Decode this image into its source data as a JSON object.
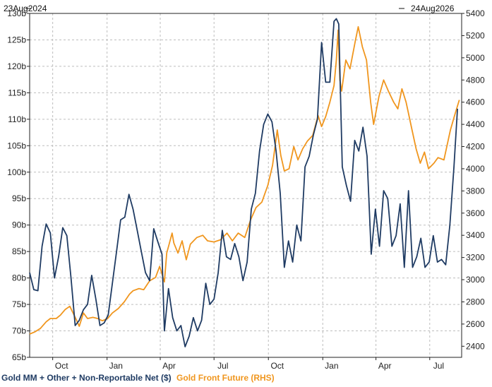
{
  "chart_data": {
    "type": "line",
    "title": "",
    "date_range": {
      "start_label": "23Aug2024",
      "end_label": "24Aug2026"
    },
    "x_axis": {
      "start": "2024-08-23",
      "end": "2026-08-24",
      "ticks": [
        {
          "label": "Oct",
          "date": "2024-10-01"
        },
        {
          "label": "Jan",
          "date": "2025-01-01"
        },
        {
          "label": "Apr",
          "date": "2025-04-01"
        },
        {
          "label": "Jul",
          "date": "2025-07-01"
        },
        {
          "label": "Oct",
          "date": "2025-10-01"
        },
        {
          "label": "Jan",
          "date": "2026-01-01"
        },
        {
          "label": "Apr",
          "date": "2026-04-01"
        },
        {
          "label": "Jul",
          "date": "2026-07-01"
        }
      ]
    },
    "y_left": {
      "range": [
        65,
        130
      ],
      "ticks": [
        65,
        70,
        75,
        80,
        85,
        90,
        95,
        100,
        105,
        110,
        115,
        120,
        125,
        130
      ],
      "tick_labels": [
        "65b",
        "70b",
        "75b",
        "80b",
        "85b",
        "90b",
        "95b",
        "100b",
        "105b",
        "110b",
        "115b",
        "120b",
        "125b",
        "130b"
      ]
    },
    "y_right": {
      "range": [
        2300,
        5400
      ],
      "ticks": [
        2400,
        2600,
        2800,
        3000,
        3200,
        3400,
        3600,
        3800,
        4000,
        4200,
        4400,
        4600,
        4800,
        5000,
        5200,
        5400
      ],
      "tick_labels": [
        "2400",
        "2600",
        "2800",
        "3000",
        "3200",
        "3400",
        "3600",
        "3800",
        "4000",
        "4200",
        "4400",
        "4600",
        "4800",
        "5000",
        "5200",
        "5400"
      ]
    },
    "grid": true,
    "legend_position": "bottom-left",
    "series": [
      {
        "name": "Gold MM + Other + Non-Reportable Net ($)",
        "axis": "left",
        "color": "#1f3b63",
        "points": [
          [
            "2024-08-23",
            81
          ],
          [
            "2024-08-30",
            77.8
          ],
          [
            "2024-09-06",
            77.6
          ],
          [
            "2024-09-13",
            86
          ],
          [
            "2024-09-20",
            90.2
          ],
          [
            "2024-09-27",
            88.5
          ],
          [
            "2024-10-04",
            80
          ],
          [
            "2024-10-11",
            84
          ],
          [
            "2024-10-18",
            89.5
          ],
          [
            "2024-10-25",
            88
          ],
          [
            "2024-11-01",
            80
          ],
          [
            "2024-11-08",
            71
          ],
          [
            "2024-11-15",
            72
          ],
          [
            "2024-11-22",
            74
          ],
          [
            "2024-11-29",
            75
          ],
          [
            "2024-12-06",
            80.5
          ],
          [
            "2024-12-13",
            76
          ],
          [
            "2024-12-20",
            71
          ],
          [
            "2024-12-27",
            71.5
          ],
          [
            "2025-01-03",
            73
          ],
          [
            "2025-01-10",
            79
          ],
          [
            "2025-01-17",
            85
          ],
          [
            "2025-01-24",
            91
          ],
          [
            "2025-01-31",
            91.5
          ],
          [
            "2025-02-07",
            95.8
          ],
          [
            "2025-02-14",
            93
          ],
          [
            "2025-02-21",
            89
          ],
          [
            "2025-02-28",
            85
          ],
          [
            "2025-03-07",
            81
          ],
          [
            "2025-03-14",
            79.5
          ],
          [
            "2025-03-21",
            89.3
          ],
          [
            "2025-03-28",
            86.8
          ],
          [
            "2025-04-04",
            84.5
          ],
          [
            "2025-04-08",
            70
          ],
          [
            "2025-04-15",
            78
          ],
          [
            "2025-04-22",
            72.5
          ],
          [
            "2025-04-29",
            70
          ],
          [
            "2025-05-06",
            71
          ],
          [
            "2025-05-13",
            67
          ],
          [
            "2025-05-20",
            69
          ],
          [
            "2025-05-27",
            72.5
          ],
          [
            "2025-06-03",
            70
          ],
          [
            "2025-06-10",
            72
          ],
          [
            "2025-06-17",
            79
          ],
          [
            "2025-06-24",
            75
          ],
          [
            "2025-07-01",
            76
          ],
          [
            "2025-07-08",
            81
          ],
          [
            "2025-07-15",
            89
          ],
          [
            "2025-07-22",
            84
          ],
          [
            "2025-07-29",
            83.5
          ],
          [
            "2025-08-05",
            86.5
          ],
          [
            "2025-08-12",
            84
          ],
          [
            "2025-08-19",
            79.5
          ],
          [
            "2025-08-26",
            83
          ],
          [
            "2025-09-02",
            93
          ],
          [
            "2025-09-09",
            96
          ],
          [
            "2025-09-16",
            104
          ],
          [
            "2025-09-23",
            109
          ],
          [
            "2025-09-30",
            111
          ],
          [
            "2025-10-07",
            109.5
          ],
          [
            "2025-10-14",
            104
          ],
          [
            "2025-10-21",
            96
          ],
          [
            "2025-10-28",
            82
          ],
          [
            "2025-11-04",
            87
          ],
          [
            "2025-11-11",
            83
          ],
          [
            "2025-11-18",
            90
          ],
          [
            "2025-11-25",
            87
          ],
          [
            "2025-12-02",
            101
          ],
          [
            "2025-12-09",
            103
          ],
          [
            "2025-12-16",
            107
          ],
          [
            "2025-12-23",
            110
          ],
          [
            "2025-12-30",
            124.5
          ],
          [
            "2026-01-06",
            117
          ],
          [
            "2026-01-13",
            117
          ],
          [
            "2026-01-20",
            128.5
          ],
          [
            "2026-01-24",
            129
          ],
          [
            "2026-01-28",
            128
          ],
          [
            "2026-02-03",
            101
          ],
          [
            "2026-02-10",
            97.5
          ],
          [
            "2026-02-17",
            94.5
          ],
          [
            "2026-02-24",
            106
          ],
          [
            "2026-03-03",
            104
          ],
          [
            "2026-03-10",
            108.5
          ],
          [
            "2026-03-17",
            103
          ],
          [
            "2026-03-24",
            84.5
          ],
          [
            "2026-03-31",
            93
          ],
          [
            "2026-04-07",
            86
          ],
          [
            "2026-04-14",
            96.5
          ],
          [
            "2026-04-21",
            95
          ],
          [
            "2026-04-28",
            86
          ],
          [
            "2026-05-05",
            88
          ],
          [
            "2026-05-12",
            94
          ],
          [
            "2026-05-19",
            82
          ],
          [
            "2026-05-26",
            96.5
          ],
          [
            "2026-06-02",
            82
          ],
          [
            "2026-06-09",
            84
          ],
          [
            "2026-06-16",
            87.5
          ],
          [
            "2026-06-23",
            82
          ],
          [
            "2026-06-30",
            83
          ],
          [
            "2026-07-07",
            88
          ],
          [
            "2026-07-14",
            83
          ],
          [
            "2026-07-21",
            83.5
          ],
          [
            "2026-07-28",
            82.5
          ],
          [
            "2026-08-04",
            90
          ],
          [
            "2026-08-11",
            101
          ],
          [
            "2026-08-17",
            112
          ]
        ]
      },
      {
        "name": "Gold Front Future (RHS)",
        "axis": "right",
        "color": "#f0961e",
        "points": [
          [
            "2024-08-23",
            2510
          ],
          [
            "2024-09-01",
            2530
          ],
          [
            "2024-09-10",
            2560
          ],
          [
            "2024-09-20",
            2620
          ],
          [
            "2024-09-27",
            2650
          ],
          [
            "2024-10-07",
            2650
          ],
          [
            "2024-10-14",
            2680
          ],
          [
            "2024-10-22",
            2730
          ],
          [
            "2024-10-30",
            2760
          ],
          [
            "2024-11-08",
            2660
          ],
          [
            "2024-11-15",
            2580
          ],
          [
            "2024-11-22",
            2700
          ],
          [
            "2024-11-29",
            2650
          ],
          [
            "2024-12-08",
            2660
          ],
          [
            "2024-12-16",
            2650
          ],
          [
            "2024-12-24",
            2630
          ],
          [
            "2025-01-02",
            2650
          ],
          [
            "2025-01-10",
            2700
          ],
          [
            "2025-01-20",
            2740
          ],
          [
            "2025-01-30",
            2800
          ],
          [
            "2025-02-08",
            2870
          ],
          [
            "2025-02-14",
            2900
          ],
          [
            "2025-02-24",
            2920
          ],
          [
            "2025-03-04",
            2910
          ],
          [
            "2025-03-14",
            2990
          ],
          [
            "2025-03-24",
            3020
          ],
          [
            "2025-03-31",
            3120
          ],
          [
            "2025-04-08",
            2980
          ],
          [
            "2025-04-12",
            3240
          ],
          [
            "2025-04-16",
            3320
          ],
          [
            "2025-04-21",
            3420
          ],
          [
            "2025-04-24",
            3330
          ],
          [
            "2025-05-01",
            3240
          ],
          [
            "2025-05-08",
            3350
          ],
          [
            "2025-05-15",
            3180
          ],
          [
            "2025-05-22",
            3320
          ],
          [
            "2025-06-02",
            3380
          ],
          [
            "2025-06-12",
            3400
          ],
          [
            "2025-06-20",
            3350
          ],
          [
            "2025-07-01",
            3340
          ],
          [
            "2025-07-12",
            3360
          ],
          [
            "2025-07-23",
            3420
          ],
          [
            "2025-08-01",
            3350
          ],
          [
            "2025-08-11",
            3420
          ],
          [
            "2025-08-22",
            3380
          ],
          [
            "2025-09-01",
            3540
          ],
          [
            "2025-09-10",
            3650
          ],
          [
            "2025-09-20",
            3700
          ],
          [
            "2025-09-30",
            3850
          ],
          [
            "2025-10-08",
            4030
          ],
          [
            "2025-10-16",
            4350
          ],
          [
            "2025-10-22",
            4120
          ],
          [
            "2025-10-28",
            3980
          ],
          [
            "2025-11-05",
            4000
          ],
          [
            "2025-11-13",
            4200
          ],
          [
            "2025-11-20",
            4080
          ],
          [
            "2025-11-28",
            4180
          ],
          [
            "2025-12-06",
            4250
          ],
          [
            "2025-12-15",
            4300
          ],
          [
            "2025-12-24",
            4480
          ],
          [
            "2025-12-30",
            4380
          ],
          [
            "2026-01-06",
            4470
          ],
          [
            "2026-01-13",
            4600
          ],
          [
            "2026-01-20",
            4750
          ],
          [
            "2026-01-24",
            4980
          ],
          [
            "2026-01-27",
            5250
          ],
          [
            "2026-01-30",
            4800
          ],
          [
            "2026-02-02",
            4700
          ],
          [
            "2026-02-09",
            4980
          ],
          [
            "2026-02-16",
            4900
          ],
          [
            "2026-02-25",
            5150
          ],
          [
            "2026-03-02",
            5280
          ],
          [
            "2026-03-09",
            5100
          ],
          [
            "2026-03-16",
            4980
          ],
          [
            "2026-03-23",
            4600
          ],
          [
            "2026-03-28",
            4400
          ],
          [
            "2026-04-06",
            4650
          ],
          [
            "2026-04-14",
            4800
          ],
          [
            "2026-04-22",
            4700
          ],
          [
            "2026-05-01",
            4600
          ],
          [
            "2026-05-08",
            4540
          ],
          [
            "2026-05-15",
            4720
          ],
          [
            "2026-05-22",
            4600
          ],
          [
            "2026-06-01",
            4350
          ],
          [
            "2026-06-08",
            4180
          ],
          [
            "2026-06-15",
            4050
          ],
          [
            "2026-06-22",
            4150
          ],
          [
            "2026-06-29",
            4000
          ],
          [
            "2026-07-08",
            4050
          ],
          [
            "2026-07-15",
            4100
          ],
          [
            "2026-07-25",
            4080
          ],
          [
            "2026-08-05",
            4350
          ],
          [
            "2026-08-12",
            4480
          ],
          [
            "2026-08-20",
            4620
          ]
        ]
      }
    ]
  }
}
